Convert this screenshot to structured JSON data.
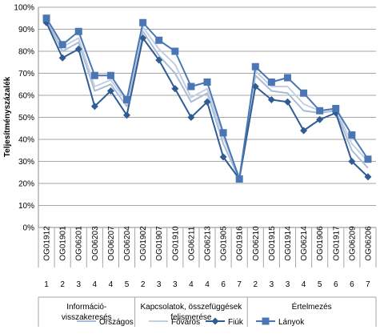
{
  "chart_data": {
    "type": "line",
    "ylabel": "Teljesítményszázalék",
    "xlabel": "",
    "ylim": [
      0,
      100
    ],
    "y_ticks": [
      "0%",
      "10%",
      "20%",
      "30%",
      "40%",
      "50%",
      "60%",
      "70%",
      "80%",
      "90%",
      "100%"
    ],
    "grid": true,
    "legend_position": "bottom",
    "categories": [
      {
        "code": "OG01912",
        "level": "1"
      },
      {
        "code": "OG01901",
        "level": "2"
      },
      {
        "code": "OG06201",
        "level": "3"
      },
      {
        "code": "OG06203",
        "level": "4"
      },
      {
        "code": "OG06207",
        "level": "4"
      },
      {
        "code": "OG06204",
        "level": "5"
      },
      {
        "code": "OG01902",
        "level": "2"
      },
      {
        "code": "OG01907",
        "level": "3"
      },
      {
        "code": "OG01910",
        "level": "3"
      },
      {
        "code": "OG06211",
        "level": "4"
      },
      {
        "code": "OG06213",
        "level": "4"
      },
      {
        "code": "OG01905",
        "level": "6"
      },
      {
        "code": "OG01916",
        "level": "7"
      },
      {
        "code": "OG06210",
        "level": "2"
      },
      {
        "code": "OG01915",
        "level": "3"
      },
      {
        "code": "OG01914",
        "level": "3"
      },
      {
        "code": "OG06214",
        "level": "4"
      },
      {
        "code": "OG01906",
        "level": "5"
      },
      {
        "code": "OG01917",
        "level": "6"
      },
      {
        "code": "OG06209",
        "level": "6"
      },
      {
        "code": "OG06206",
        "level": "7"
      }
    ],
    "groups": [
      {
        "label_lines": [
          "Információ-",
          "visszakeresés"
        ],
        "start": 0,
        "end": 5
      },
      {
        "label_lines": [
          "Kapcsolatok, összefüggések",
          "felismerése"
        ],
        "start": 6,
        "end": 12
      },
      {
        "label_lines": [
          "Értelmezés"
        ],
        "start": 13,
        "end": 20
      }
    ],
    "series": [
      {
        "name": "Országos",
        "color": "#a9bcd8",
        "marker": "none",
        "values": [
          94,
          80,
          84,
          62,
          65,
          55,
          89,
          78,
          70,
          57,
          61,
          38,
          22,
          69,
          62,
          61,
          53,
          52,
          53,
          35,
          27
        ]
      },
      {
        "name": "Főváros",
        "color": "#c3cfe2",
        "marker": "none",
        "values": [
          95,
          82,
          86,
          64,
          67,
          57,
          91,
          81,
          74,
          59,
          63,
          41,
          23,
          71,
          64,
          64,
          56,
          53,
          54,
          38,
          30
        ]
      },
      {
        "name": "Fiúk",
        "color": "#2e5c93",
        "marker": "diamond",
        "values": [
          93,
          77,
          81,
          55,
          62,
          51,
          86,
          76,
          63,
          50,
          57,
          32,
          22,
          64,
          58,
          57,
          44,
          49,
          52,
          30,
          23
        ]
      },
      {
        "name": "Lányok",
        "color": "#4a77b4",
        "marker": "square",
        "values": [
          95,
          83,
          89,
          69,
          69,
          58,
          93,
          85,
          80,
          64,
          66,
          43,
          22,
          73,
          66,
          68,
          61,
          53,
          54,
          42,
          31
        ]
      }
    ]
  }
}
